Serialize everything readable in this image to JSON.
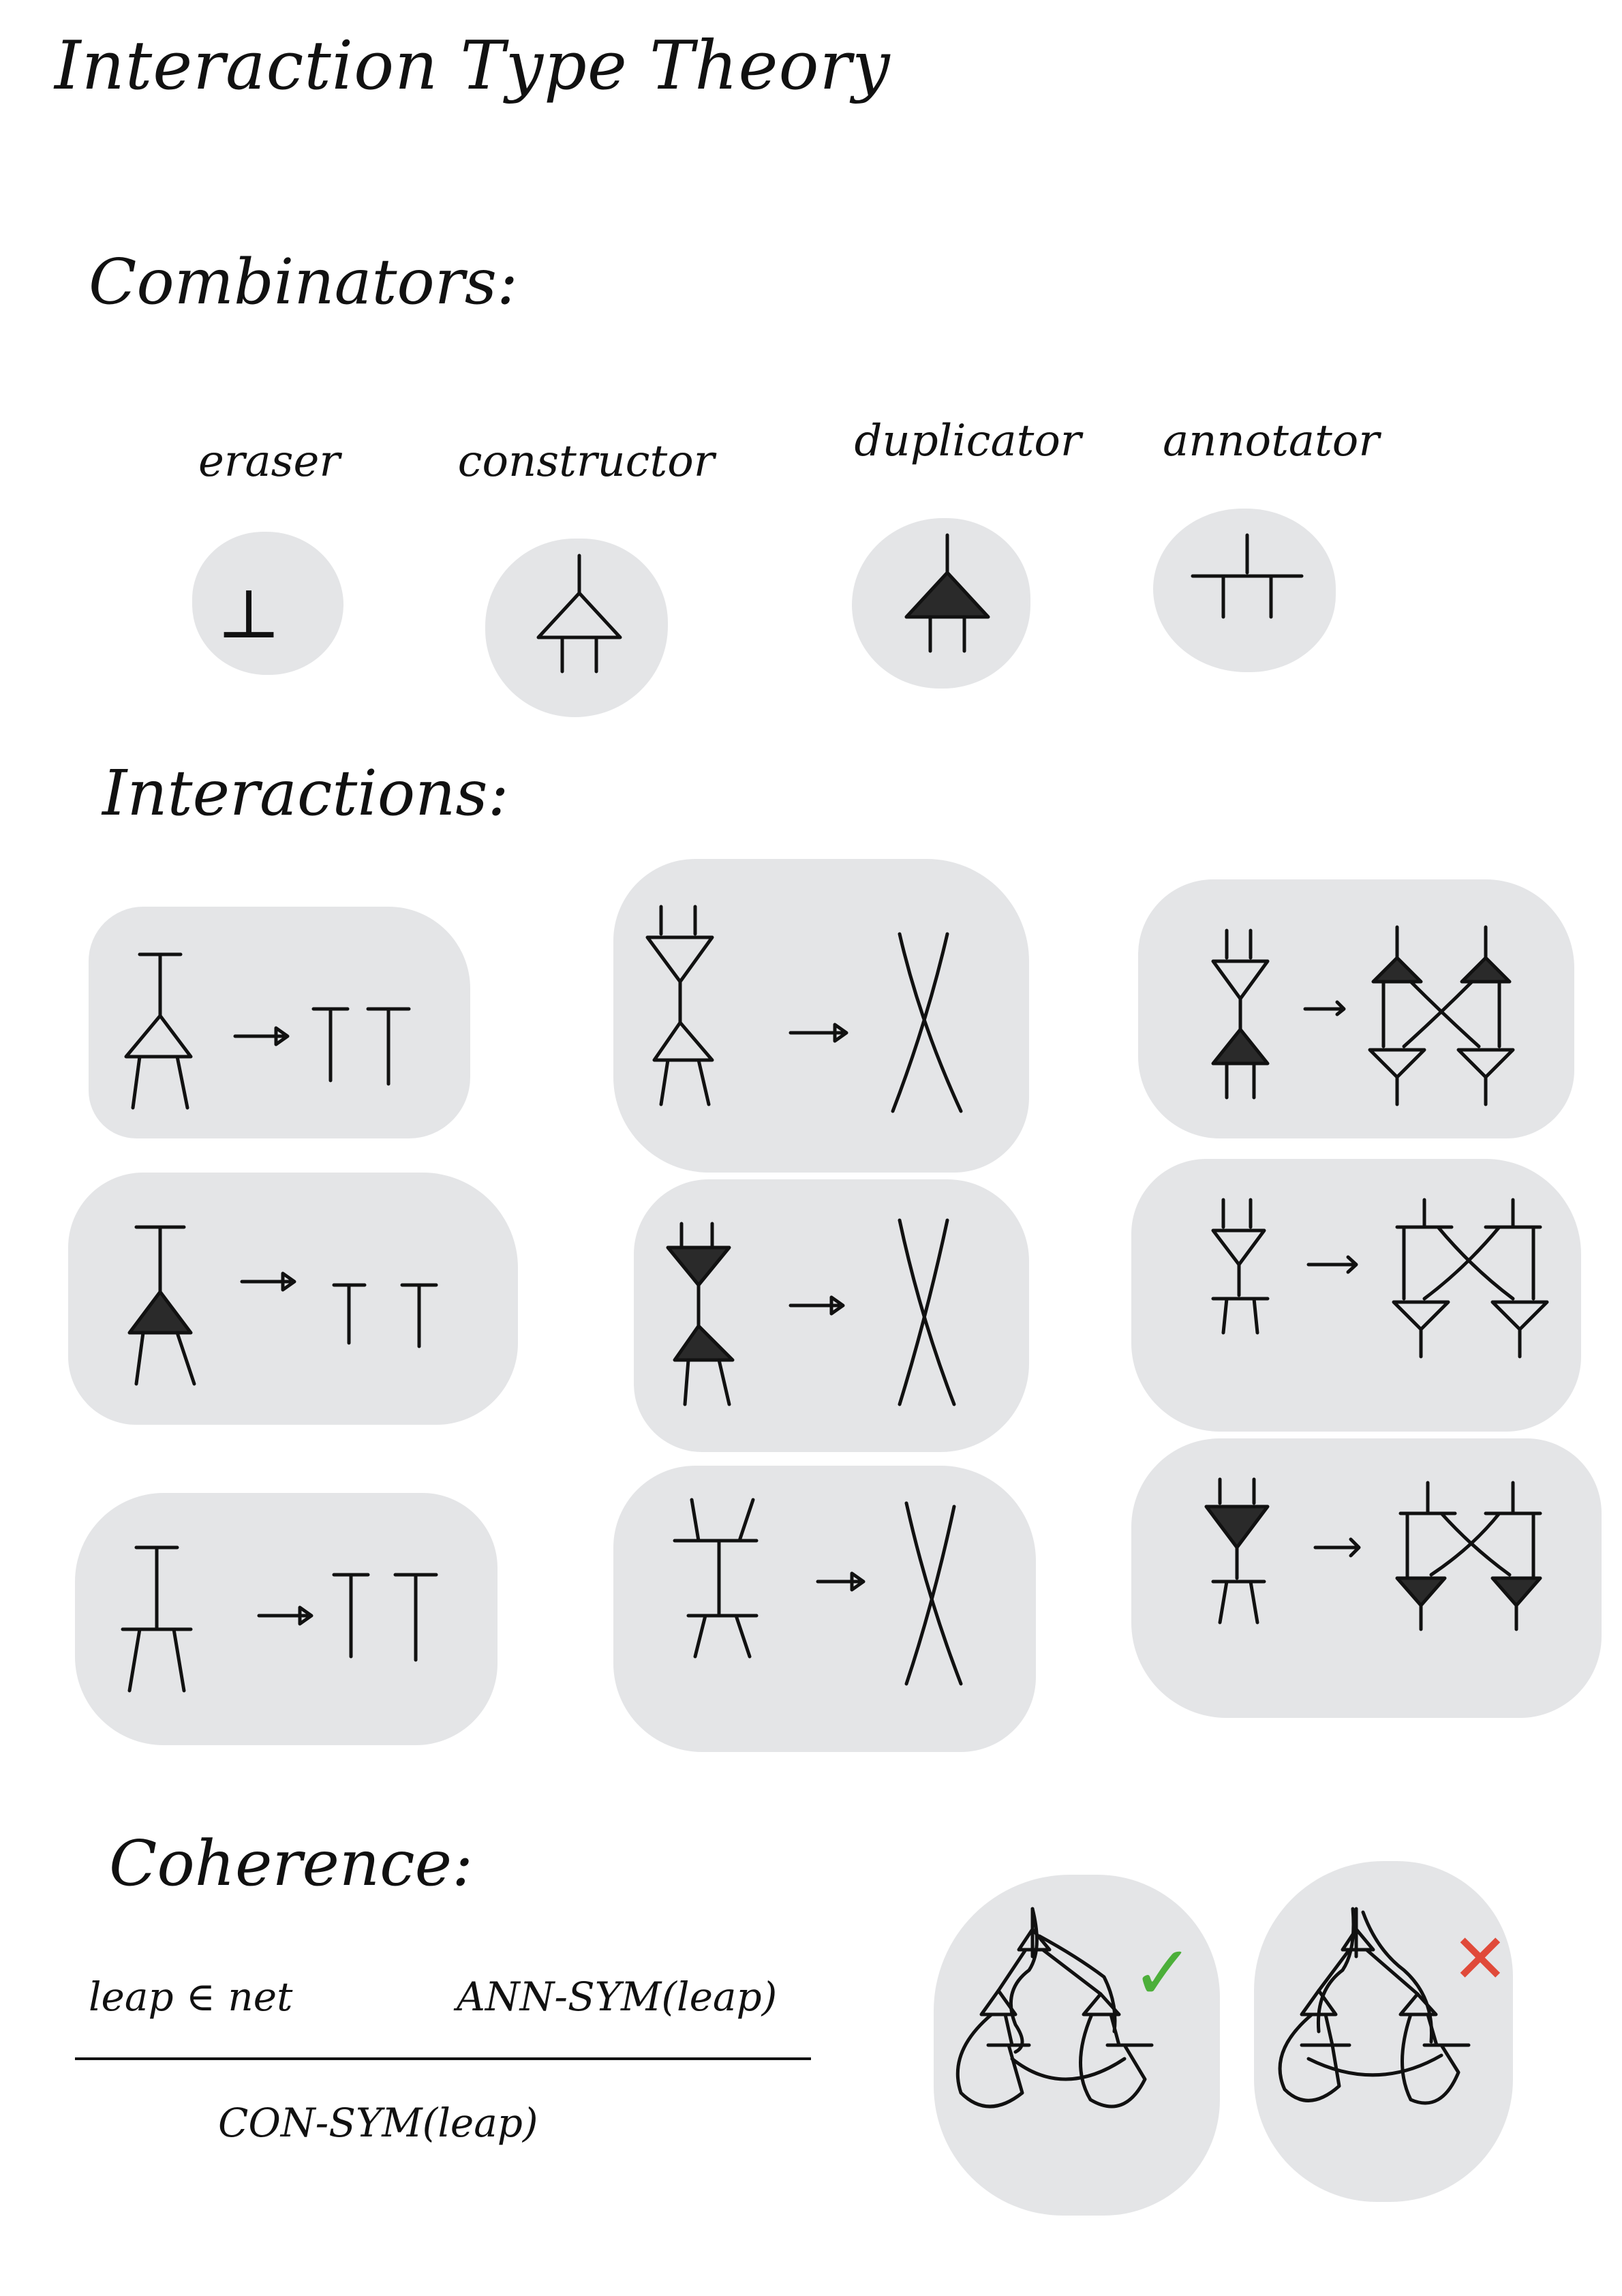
{
  "title": "Interaction Type Theory",
  "sections": {
    "combinators": "Combinators:",
    "interactions": "Interactions:",
    "coherence": "Coherence:"
  },
  "combinators": [
    {
      "label": "eraser",
      "symbol": "⊥"
    },
    {
      "label": "constructor"
    },
    {
      "label": "duplicator"
    },
    {
      "label": "annotator"
    }
  ],
  "coherence_rule": {
    "premise_left": "leap ∈ net",
    "premise_right": "ANN-SYM(leap)",
    "conclusion": "CON-SYM(leap)"
  },
  "coherence_marks": {
    "valid": "✓",
    "invalid": "✕"
  },
  "colors": {
    "blob": "#e4e5e7",
    "ink": "#111111",
    "path_valid": "#4caf3a",
    "path_invalid": "#e04a3a",
    "link": "#3aa6e0"
  }
}
